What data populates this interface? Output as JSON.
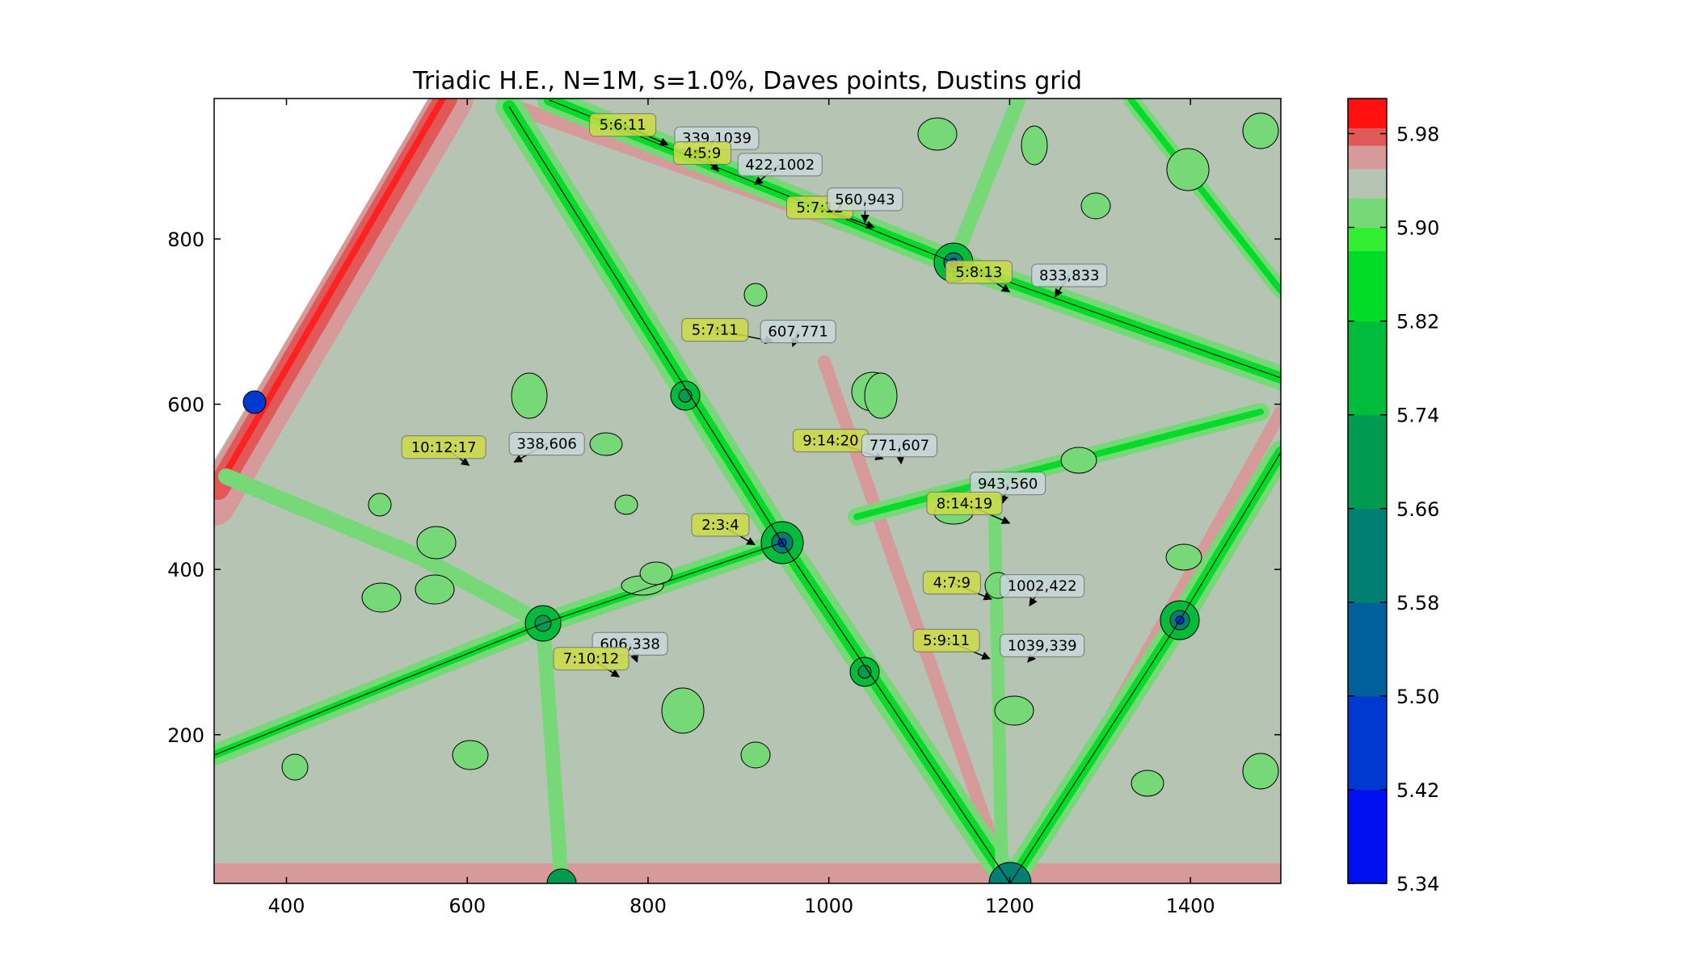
{
  "chart_data": {
    "type": "heatmap",
    "title": "Triadic H.E., N=1M, s=1.0%, Daves points, Dustins grid",
    "xlabel": "",
    "ylabel": "",
    "xlim": [
      320,
      1500
    ],
    "ylim": [
      20,
      970
    ],
    "x_ticks": [
      400,
      600,
      800,
      1000,
      1200,
      1400
    ],
    "y_ticks": [
      200,
      400,
      600,
      800
    ],
    "grid": false,
    "contour_lines": true,
    "colorbar": {
      "placement": "right",
      "range": [
        5.34,
        6.01
      ],
      "ticks": [
        "5.34",
        "5.42",
        "5.50",
        "5.58",
        "5.66",
        "5.74",
        "5.82",
        "5.90",
        "5.98"
      ],
      "tick_values": [
        5.34,
        5.42,
        5.5,
        5.58,
        5.66,
        5.74,
        5.82,
        5.9,
        5.98
      ],
      "bands": [
        {
          "from": 5.34,
          "to": 5.42,
          "color": "#0010f0"
        },
        {
          "from": 5.42,
          "to": 5.5,
          "color": "#0038d0"
        },
        {
          "from": 5.5,
          "to": 5.58,
          "color": "#00609c"
        },
        {
          "from": 5.58,
          "to": 5.66,
          "color": "#007f72"
        },
        {
          "from": 5.66,
          "to": 5.74,
          "color": "#009a50"
        },
        {
          "from": 5.74,
          "to": 5.82,
          "color": "#00bc3a"
        },
        {
          "from": 5.82,
          "to": 5.88,
          "color": "#00dc28"
        },
        {
          "from": 5.88,
          "to": 5.9,
          "color": "#33ee33"
        },
        {
          "from": 5.9,
          "to": 5.925,
          "color": "#77d877"
        },
        {
          "from": 5.925,
          "to": 5.95,
          "color": "#b6c4b4"
        },
        {
          "from": 5.95,
          "to": 5.97,
          "color": "#d69a9a"
        },
        {
          "from": 5.97,
          "to": 5.985,
          "color": "#e05858"
        },
        {
          "from": 5.985,
          "to": 6.01,
          "color": "#ff1010"
        }
      ]
    },
    "annotations": [
      {
        "label": "5:6:11",
        "text_at": [
          772,
          938
        ],
        "point": [
          822,
          914
        ],
        "style": "ratio"
      },
      {
        "label": "339,1039",
        "text_at": [
          876,
          922
        ],
        "point": [
          850,
          902
        ],
        "style": "coord"
      },
      {
        "label": "4:5:9",
        "text_at": [
          860,
          904
        ],
        "point": [
          878,
          882
        ],
        "style": "ratio"
      },
      {
        "label": "422,1002",
        "text_at": [
          946,
          890
        ],
        "point": [
          918,
          866
        ],
        "style": "coord"
      },
      {
        "label": "5:7:12",
        "text_at": [
          990,
          838
        ],
        "point": [
          1050,
          814
        ],
        "style": "ratio"
      },
      {
        "label": "560,943",
        "text_at": [
          1040,
          848
        ],
        "point": [
          1040,
          820
        ],
        "style": "coord"
      },
      {
        "label": "5:8:13",
        "text_at": [
          1166,
          760
        ],
        "point": [
          1200,
          736
        ],
        "style": "ratio"
      },
      {
        "label": "833,833",
        "text_at": [
          1266,
          756
        ],
        "point": [
          1250,
          730
        ],
        "style": "coord"
      },
      {
        "label": "5:7:11",
        "text_at": [
          874,
          690
        ],
        "point": [
          938,
          676
        ],
        "style": "ratio"
      },
      {
        "label": "607,771",
        "text_at": [
          966,
          688
        ],
        "point": [
          960,
          670
        ],
        "style": "coord"
      },
      {
        "label": "10:12:17",
        "text_at": [
          574,
          548
        ],
        "point": [
          602,
          526
        ],
        "style": "ratio"
      },
      {
        "label": "338,606",
        "text_at": [
          688,
          552
        ],
        "point": [
          652,
          530
        ],
        "style": "coord"
      },
      {
        "label": "9:14:20",
        "text_at": [
          1002,
          556
        ],
        "point": [
          1060,
          534
        ],
        "style": "ratio"
      },
      {
        "label": "771,607",
        "text_at": [
          1078,
          550
        ],
        "point": [
          1080,
          528
        ],
        "style": "coord"
      },
      {
        "label": "943,560",
        "text_at": [
          1198,
          504
        ],
        "point": [
          1192,
          480
        ],
        "style": "coord"
      },
      {
        "label": "8:14:19",
        "text_at": [
          1150,
          480
        ],
        "point": [
          1200,
          456
        ],
        "style": "ratio"
      },
      {
        "label": "2:3:4",
        "text_at": [
          880,
          454
        ],
        "point": [
          918,
          430
        ],
        "style": "ratio"
      },
      {
        "label": "4:7:9",
        "text_at": [
          1136,
          384
        ],
        "point": [
          1180,
          364
        ],
        "style": "ratio"
      },
      {
        "label": "1002,422",
        "text_at": [
          1236,
          380
        ],
        "point": [
          1222,
          356
        ],
        "style": "coord"
      },
      {
        "label": "5:9:11",
        "text_at": [
          1130,
          314
        ],
        "point": [
          1178,
          292
        ],
        "style": "ratio"
      },
      {
        "label": "1039,339",
        "text_at": [
          1236,
          308
        ],
        "point": [
          1220,
          288
        ],
        "style": "coord"
      },
      {
        "label": "606,338",
        "text_at": [
          780,
          310
        ],
        "point": [
          788,
          288
        ],
        "style": "coord"
      },
      {
        "label": "7:10:12",
        "text_at": [
          737,
          292
        ],
        "point": [
          768,
          270
        ],
        "style": "ratio"
      }
    ]
  },
  "colors": {
    "ratio_box": "#ccdd44",
    "coord_box": "#c8d8d8",
    "background": "#b6c4b4"
  }
}
